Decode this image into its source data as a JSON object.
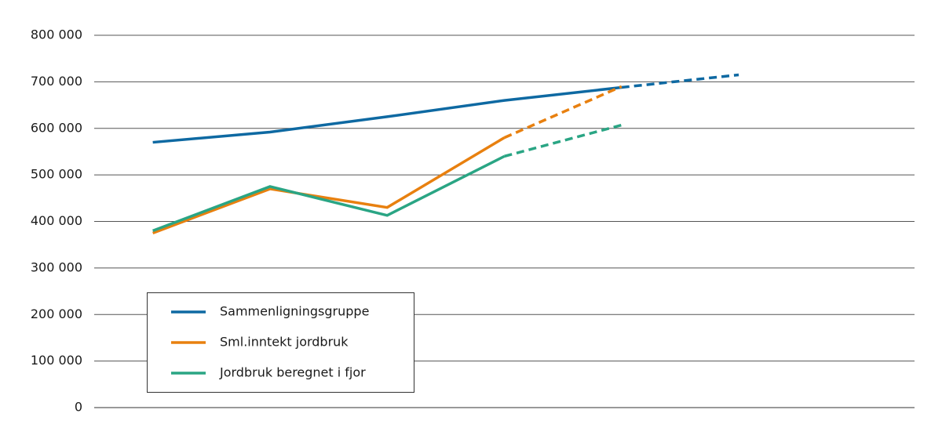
{
  "chart_data": {
    "type": "line",
    "categories": [
      null,
      null,
      null,
      null,
      null,
      null,
      null
    ],
    "ylim": [
      0,
      800000
    ],
    "yticks": [
      {
        "value": 0,
        "label": "0"
      },
      {
        "value": 100000,
        "label": "100 000"
      },
      {
        "value": 200000,
        "label": "200 000"
      },
      {
        "value": 300000,
        "label": "300 000"
      },
      {
        "value": 400000,
        "label": "400 000"
      },
      {
        "value": 500000,
        "label": "500 000"
      },
      {
        "value": 600000,
        "label": "600 000"
      },
      {
        "value": 700000,
        "label": "700 000"
      },
      {
        "value": 800000,
        "label": "800 000"
      }
    ],
    "grid": true,
    "legend": "lower-left",
    "series": [
      {
        "name": "Sammenligningsgruppe",
        "color": "#0e69a2",
        "values": [
          570000,
          592000,
          625000,
          660000,
          688000,
          715000,
          null
        ],
        "dashed": [
          false,
          false,
          false,
          false,
          false,
          true,
          false
        ]
      },
      {
        "name": "Sml.inntekt jordbruk",
        "color": "#e8800f",
        "values": [
          375000,
          470000,
          430000,
          580000,
          690000,
          null,
          null
        ],
        "dashed": [
          false,
          false,
          false,
          false,
          true,
          false,
          false
        ]
      },
      {
        "name": "Jordbruk beregnet i fjor",
        "color": "#2aa584",
        "values": [
          380000,
          475000,
          413000,
          540000,
          607000,
          null,
          null
        ],
        "dashed": [
          false,
          false,
          false,
          false,
          true,
          false,
          false
        ]
      }
    ]
  }
}
